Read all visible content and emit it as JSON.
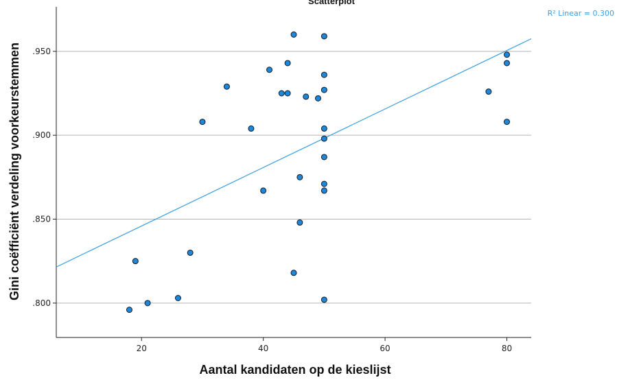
{
  "chart_data": {
    "type": "scatter",
    "title": "Scatterplot",
    "xlabel": "Aantal kandidaten op de kieslijst",
    "ylabel": "Gini coëfficiënt verdeling voorkeurstemmen",
    "xlim": [
      6,
      84
    ],
    "ylim": [
      0.7795,
      0.9765
    ],
    "x_ticks": [
      20,
      40,
      60,
      80
    ],
    "x_tick_labels": [
      "20",
      "40",
      "60",
      "80"
    ],
    "y_ticks": [
      0.8,
      0.85,
      0.9,
      0.95
    ],
    "y_tick_labels": [
      ".800",
      ".850",
      ".900",
      ".950"
    ],
    "grid": "horizontal",
    "fit_line": {
      "label": "R² Linear = 0.300",
      "points": [
        [
          6,
          0.8215
        ],
        [
          84,
          0.9575
        ]
      ]
    },
    "colors": {
      "point_fill": "#1f86d8",
      "point_edge": "#0d1b2a",
      "fit_line": "#3a9ee0",
      "gridline": "#b4b4b4"
    },
    "points": [
      {
        "x": 18,
        "y": 0.796
      },
      {
        "x": 19,
        "y": 0.825
      },
      {
        "x": 21,
        "y": 0.8
      },
      {
        "x": 26,
        "y": 0.803
      },
      {
        "x": 28,
        "y": 0.83
      },
      {
        "x": 30,
        "y": 0.908
      },
      {
        "x": 34,
        "y": 0.929
      },
      {
        "x": 38,
        "y": 0.904
      },
      {
        "x": 40,
        "y": 0.867
      },
      {
        "x": 41,
        "y": 0.939
      },
      {
        "x": 43,
        "y": 0.925
      },
      {
        "x": 44,
        "y": 0.925
      },
      {
        "x": 44,
        "y": 0.943
      },
      {
        "x": 45,
        "y": 0.96
      },
      {
        "x": 45,
        "y": 0.818
      },
      {
        "x": 46,
        "y": 0.875
      },
      {
        "x": 46,
        "y": 0.848
      },
      {
        "x": 47,
        "y": 0.923
      },
      {
        "x": 49,
        "y": 0.922
      },
      {
        "x": 50,
        "y": 0.959
      },
      {
        "x": 50,
        "y": 0.936
      },
      {
        "x": 50,
        "y": 0.927
      },
      {
        "x": 50,
        "y": 0.904
      },
      {
        "x": 50,
        "y": 0.898
      },
      {
        "x": 50,
        "y": 0.887
      },
      {
        "x": 50,
        "y": 0.871
      },
      {
        "x": 50,
        "y": 0.867
      },
      {
        "x": 50,
        "y": 0.802
      },
      {
        "x": 77,
        "y": 0.926
      },
      {
        "x": 80,
        "y": 0.948
      },
      {
        "x": 80,
        "y": 0.943
      },
      {
        "x": 80,
        "y": 0.908
      }
    ]
  }
}
